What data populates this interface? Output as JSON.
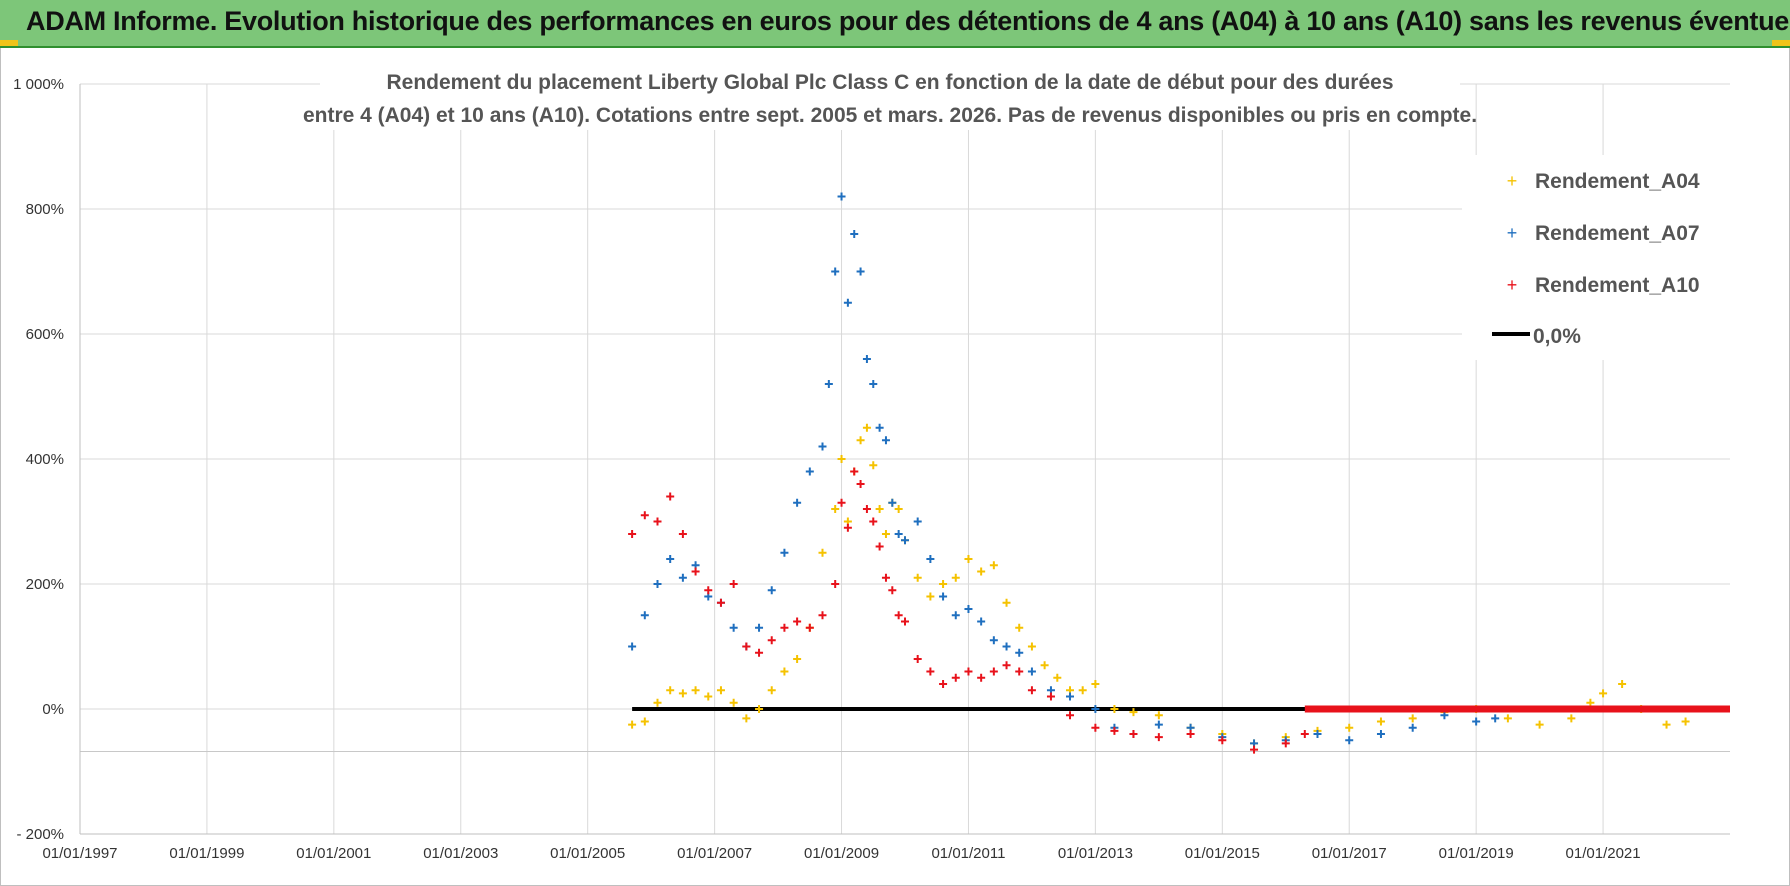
{
  "banner": {
    "title": "ADAM Informe. Evolution historique des performances en euros pour des détentions de 4 ans (A04) à 10 ans (A10) sans les revenus éventuels",
    "accent_color": "#7dc679",
    "corner_color": "#f0c419"
  },
  "chart_data": {
    "type": "scatter",
    "title_line1": "Rendement du placement Liberty Global Plc Class C en fonction de la date de début pour des durées",
    "title_line2": "entre 4 (A04) et 10 ans (A10).  Cotations entre sept. 2005 et mars. 2026.  Pas de revenus disponibles ou pris en compte.",
    "ylim": [
      -200,
      1000
    ],
    "y_ticks": [
      -200,
      0,
      200,
      400,
      600,
      800,
      1000
    ],
    "y_tick_labels": [
      "- 200%",
      "0%",
      "200%",
      "400%",
      "600%",
      "800%",
      "1 000%"
    ],
    "xlim": [
      1997.0,
      2023.0
    ],
    "x_ticks": [
      1997,
      1999,
      2001,
      2003,
      2005,
      2007,
      2009,
      2011,
      2013,
      2015,
      2017,
      2019,
      2021
    ],
    "x_tick_labels": [
      "01/01/1997",
      "01/01/1999",
      "01/01/2001",
      "01/01/2003",
      "01/01/2005",
      "01/01/2007",
      "01/01/2009",
      "01/01/2011",
      "01/01/2013",
      "01/01/2015",
      "01/01/2017",
      "01/01/2019",
      "01/01/2021"
    ],
    "series": [
      {
        "name": "Rendement_A04",
        "color": "#f5c200",
        "x": [
          2005.7,
          2005.9,
          2006.1,
          2006.3,
          2006.5,
          2006.7,
          2006.9,
          2007.1,
          2007.3,
          2007.5,
          2007.7,
          2007.9,
          2008.1,
          2008.3,
          2008.5,
          2008.7,
          2008.9,
          2009.0,
          2009.1,
          2009.2,
          2009.3,
          2009.4,
          2009.5,
          2009.6,
          2009.7,
          2009.8,
          2009.9,
          2010.0,
          2010.2,
          2010.4,
          2010.6,
          2010.8,
          2011.0,
          2011.2,
          2011.4,
          2011.6,
          2011.8,
          2012.0,
          2012.2,
          2012.4,
          2012.6,
          2012.8,
          2013.0,
          2013.3,
          2013.6,
          2014.0,
          2014.5,
          2015.0,
          2015.5,
          2016.0,
          2016.5,
          2017.0,
          2017.5,
          2018.0,
          2018.5,
          2019.0,
          2019.5,
          2020.0,
          2020.5,
          2020.8,
          2021.0,
          2021.3,
          2021.6,
          2022.0,
          2022.3
        ],
        "y": [
          -25,
          -20,
          10,
          30,
          25,
          30,
          20,
          30,
          10,
          -15,
          0,
          30,
          60,
          80,
          130,
          250,
          320,
          400,
          300,
          380,
          430,
          450,
          390,
          320,
          280,
          330,
          320,
          270,
          210,
          180,
          200,
          210,
          240,
          220,
          230,
          170,
          130,
          100,
          70,
          50,
          30,
          30,
          40,
          0,
          -5,
          -10,
          -30,
          -40,
          -55,
          -45,
          -35,
          -30,
          -20,
          -15,
          -5,
          0,
          -15,
          -25,
          -15,
          10,
          25,
          40,
          0,
          -25,
          -20
        ]
      },
      {
        "name": "Rendement_A07",
        "color": "#1f6fbf",
        "x": [
          2005.7,
          2005.9,
          2006.1,
          2006.3,
          2006.5,
          2006.7,
          2006.9,
          2007.1,
          2007.3,
          2007.5,
          2007.7,
          2007.9,
          2008.1,
          2008.3,
          2008.5,
          2008.7,
          2008.8,
          2008.9,
          2009.0,
          2009.1,
          2009.2,
          2009.3,
          2009.4,
          2009.5,
          2009.6,
          2009.7,
          2009.8,
          2009.9,
          2010.0,
          2010.2,
          2010.4,
          2010.6,
          2010.8,
          2011.0,
          2011.2,
          2011.4,
          2011.6,
          2011.8,
          2012.0,
          2012.3,
          2012.6,
          2013.0,
          2013.3,
          2013.6,
          2014.0,
          2014.5,
          2015.0,
          2015.5,
          2016.0,
          2016.5,
          2017.0,
          2017.5,
          2018.0,
          2018.5,
          2019.0,
          2019.3
        ],
        "y": [
          100,
          150,
          200,
          240,
          210,
          230,
          180,
          170,
          130,
          100,
          130,
          190,
          250,
          330,
          380,
          420,
          520,
          700,
          820,
          650,
          760,
          700,
          560,
          520,
          450,
          430,
          330,
          280,
          270,
          300,
          240,
          180,
          150,
          160,
          140,
          110,
          100,
          90,
          60,
          30,
          20,
          0,
          -30,
          -40,
          -25,
          -30,
          -45,
          -55,
          -50,
          -40,
          -50,
          -40,
          -30,
          -10,
          -20,
          -15
        ]
      },
      {
        "name": "Rendement_A10",
        "color": "#e8121b",
        "x": [
          2005.7,
          2005.9,
          2006.1,
          2006.3,
          2006.5,
          2006.7,
          2006.9,
          2007.1,
          2007.3,
          2007.5,
          2007.7,
          2007.9,
          2008.1,
          2008.3,
          2008.5,
          2008.7,
          2008.9,
          2009.0,
          2009.1,
          2009.2,
          2009.3,
          2009.4,
          2009.5,
          2009.6,
          2009.7,
          2009.8,
          2009.9,
          2010.0,
          2010.2,
          2010.4,
          2010.6,
          2010.8,
          2011.0,
          2011.2,
          2011.4,
          2011.6,
          2011.8,
          2012.0,
          2012.3,
          2012.6,
          2013.0,
          2013.3,
          2013.6,
          2014.0,
          2014.5,
          2015.0,
          2015.5,
          2016.0,
          2016.3
        ],
        "y": [
          280,
          310,
          300,
          340,
          280,
          220,
          190,
          170,
          200,
          100,
          90,
          110,
          130,
          140,
          130,
          150,
          200,
          330,
          290,
          380,
          360,
          320,
          300,
          260,
          210,
          190,
          150,
          140,
          80,
          60,
          40,
          50,
          60,
          50,
          60,
          70,
          60,
          30,
          20,
          -10,
          -30,
          -35,
          -40,
          -45,
          -40,
          -50,
          -65,
          -55,
          -40
        ]
      }
    ],
    "zero_line": {
      "name": "0,0%",
      "color": "#000000",
      "x_start": 2005.7,
      "x_end": 2023.0,
      "y": 0
    },
    "a10_flat_segment": {
      "x_start": 2016.3,
      "x_end": 2023.0,
      "y": 0
    },
    "legend_position": "top-right",
    "grid": true
  }
}
